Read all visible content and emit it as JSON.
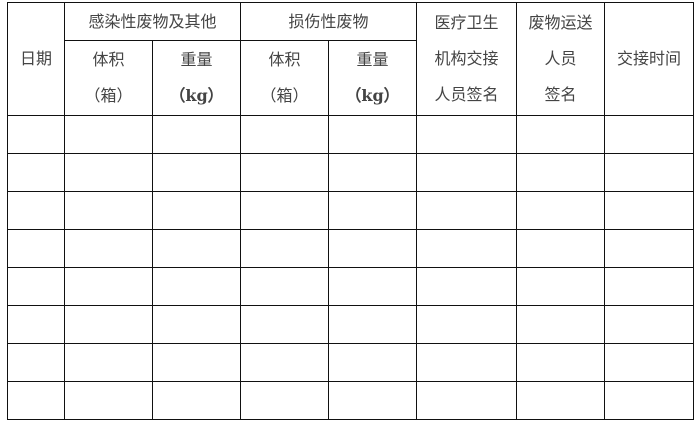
{
  "headers": {
    "date": "日期",
    "infectious": "感染性废物及其他",
    "sharps": "损伤性废物",
    "volume": "体积",
    "volume_unit": "（箱）",
    "weight": "重量",
    "weight_unit": "（kg）",
    "facility_sign": [
      "医疗卫生",
      "机构交接",
      "人员签名"
    ],
    "transport_sign": [
      "废物运送",
      "人员",
      "签名"
    ],
    "handover_time": "交接时间"
  },
  "rows": [
    [],
    [],
    [],
    [],
    [],
    [],
    [],
    []
  ]
}
